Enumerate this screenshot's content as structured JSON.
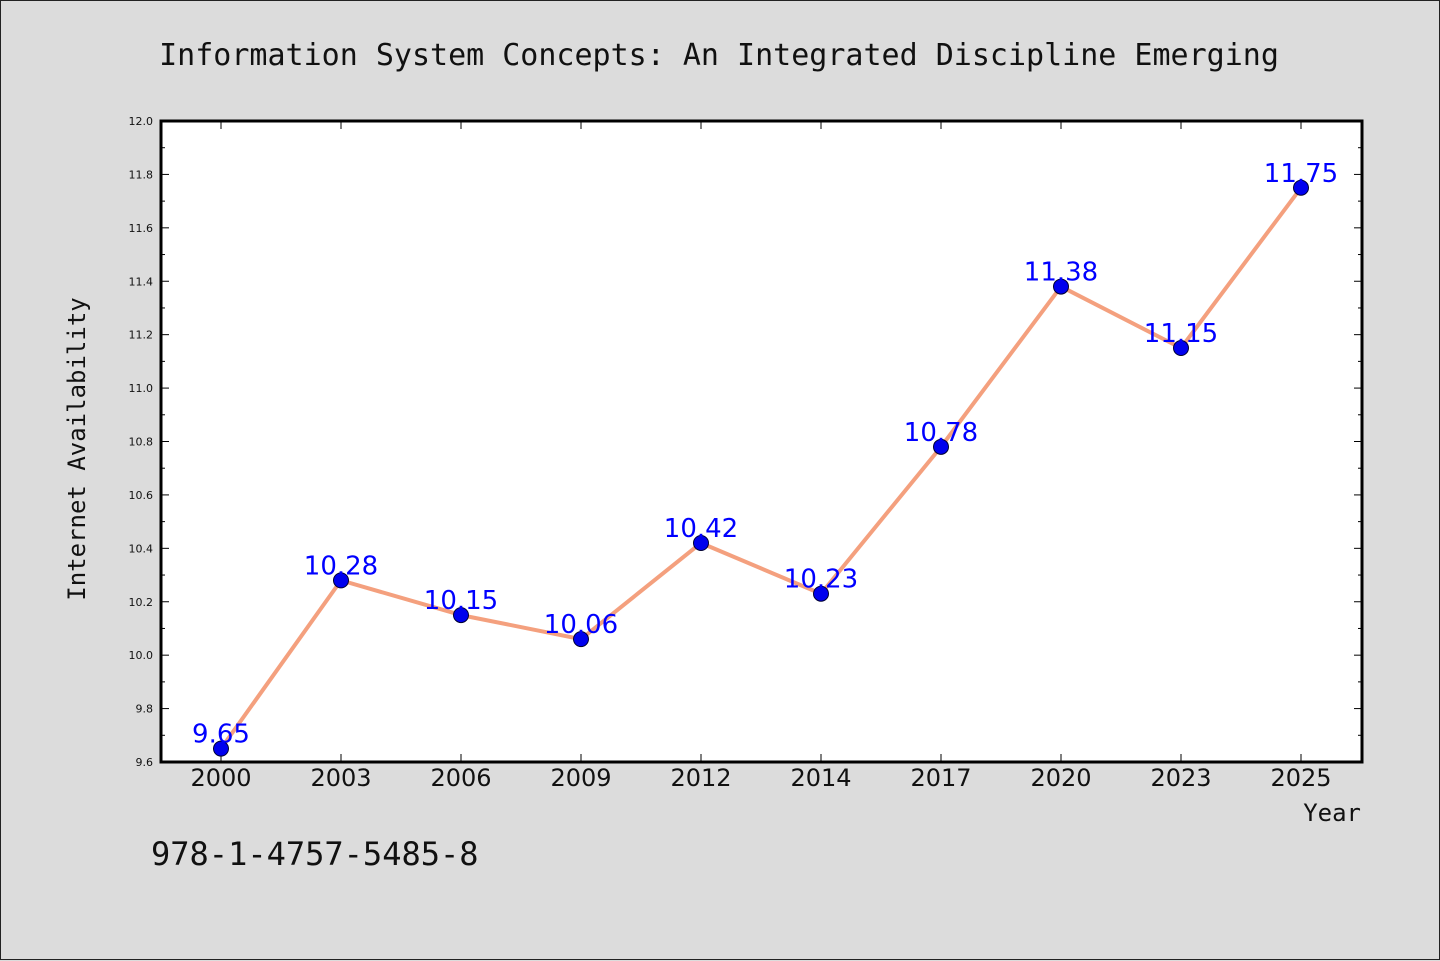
{
  "chart_data": {
    "type": "line",
    "title": "Information System Concepts: An Integrated Discipline Emerging",
    "xlabel": "Year",
    "ylabel": "Internet Availability",
    "categories": [
      "2000",
      "2003",
      "2006",
      "2009",
      "2012",
      "2014",
      "2017",
      "2020",
      "2023",
      "2025"
    ],
    "values": [
      9.65,
      10.28,
      10.15,
      10.06,
      10.42,
      10.23,
      10.78,
      11.38,
      11.15,
      11.75
    ],
    "data_labels": [
      "9.65",
      "10.28",
      "10.15",
      "10.06",
      "10.42",
      "10.23",
      "10.78",
      "11.38",
      "11.15",
      "11.75"
    ],
    "ylim": [
      9.6,
      12.0
    ],
    "yticks": [
      "9.6",
      "9.8",
      "10.0",
      "10.2",
      "10.4",
      "10.6",
      "10.8",
      "11.0",
      "11.2",
      "11.4",
      "11.6",
      "11.8",
      "12.0"
    ],
    "grid": false,
    "legend": "none",
    "colors": {
      "line": "#f4a07e",
      "marker": "#0000ee",
      "label": "#0000ff",
      "plot_bg": "#ffffff",
      "page_bg": "#dcdcdc"
    }
  },
  "footer": {
    "isbn": "978-1-4757-5485-8"
  }
}
